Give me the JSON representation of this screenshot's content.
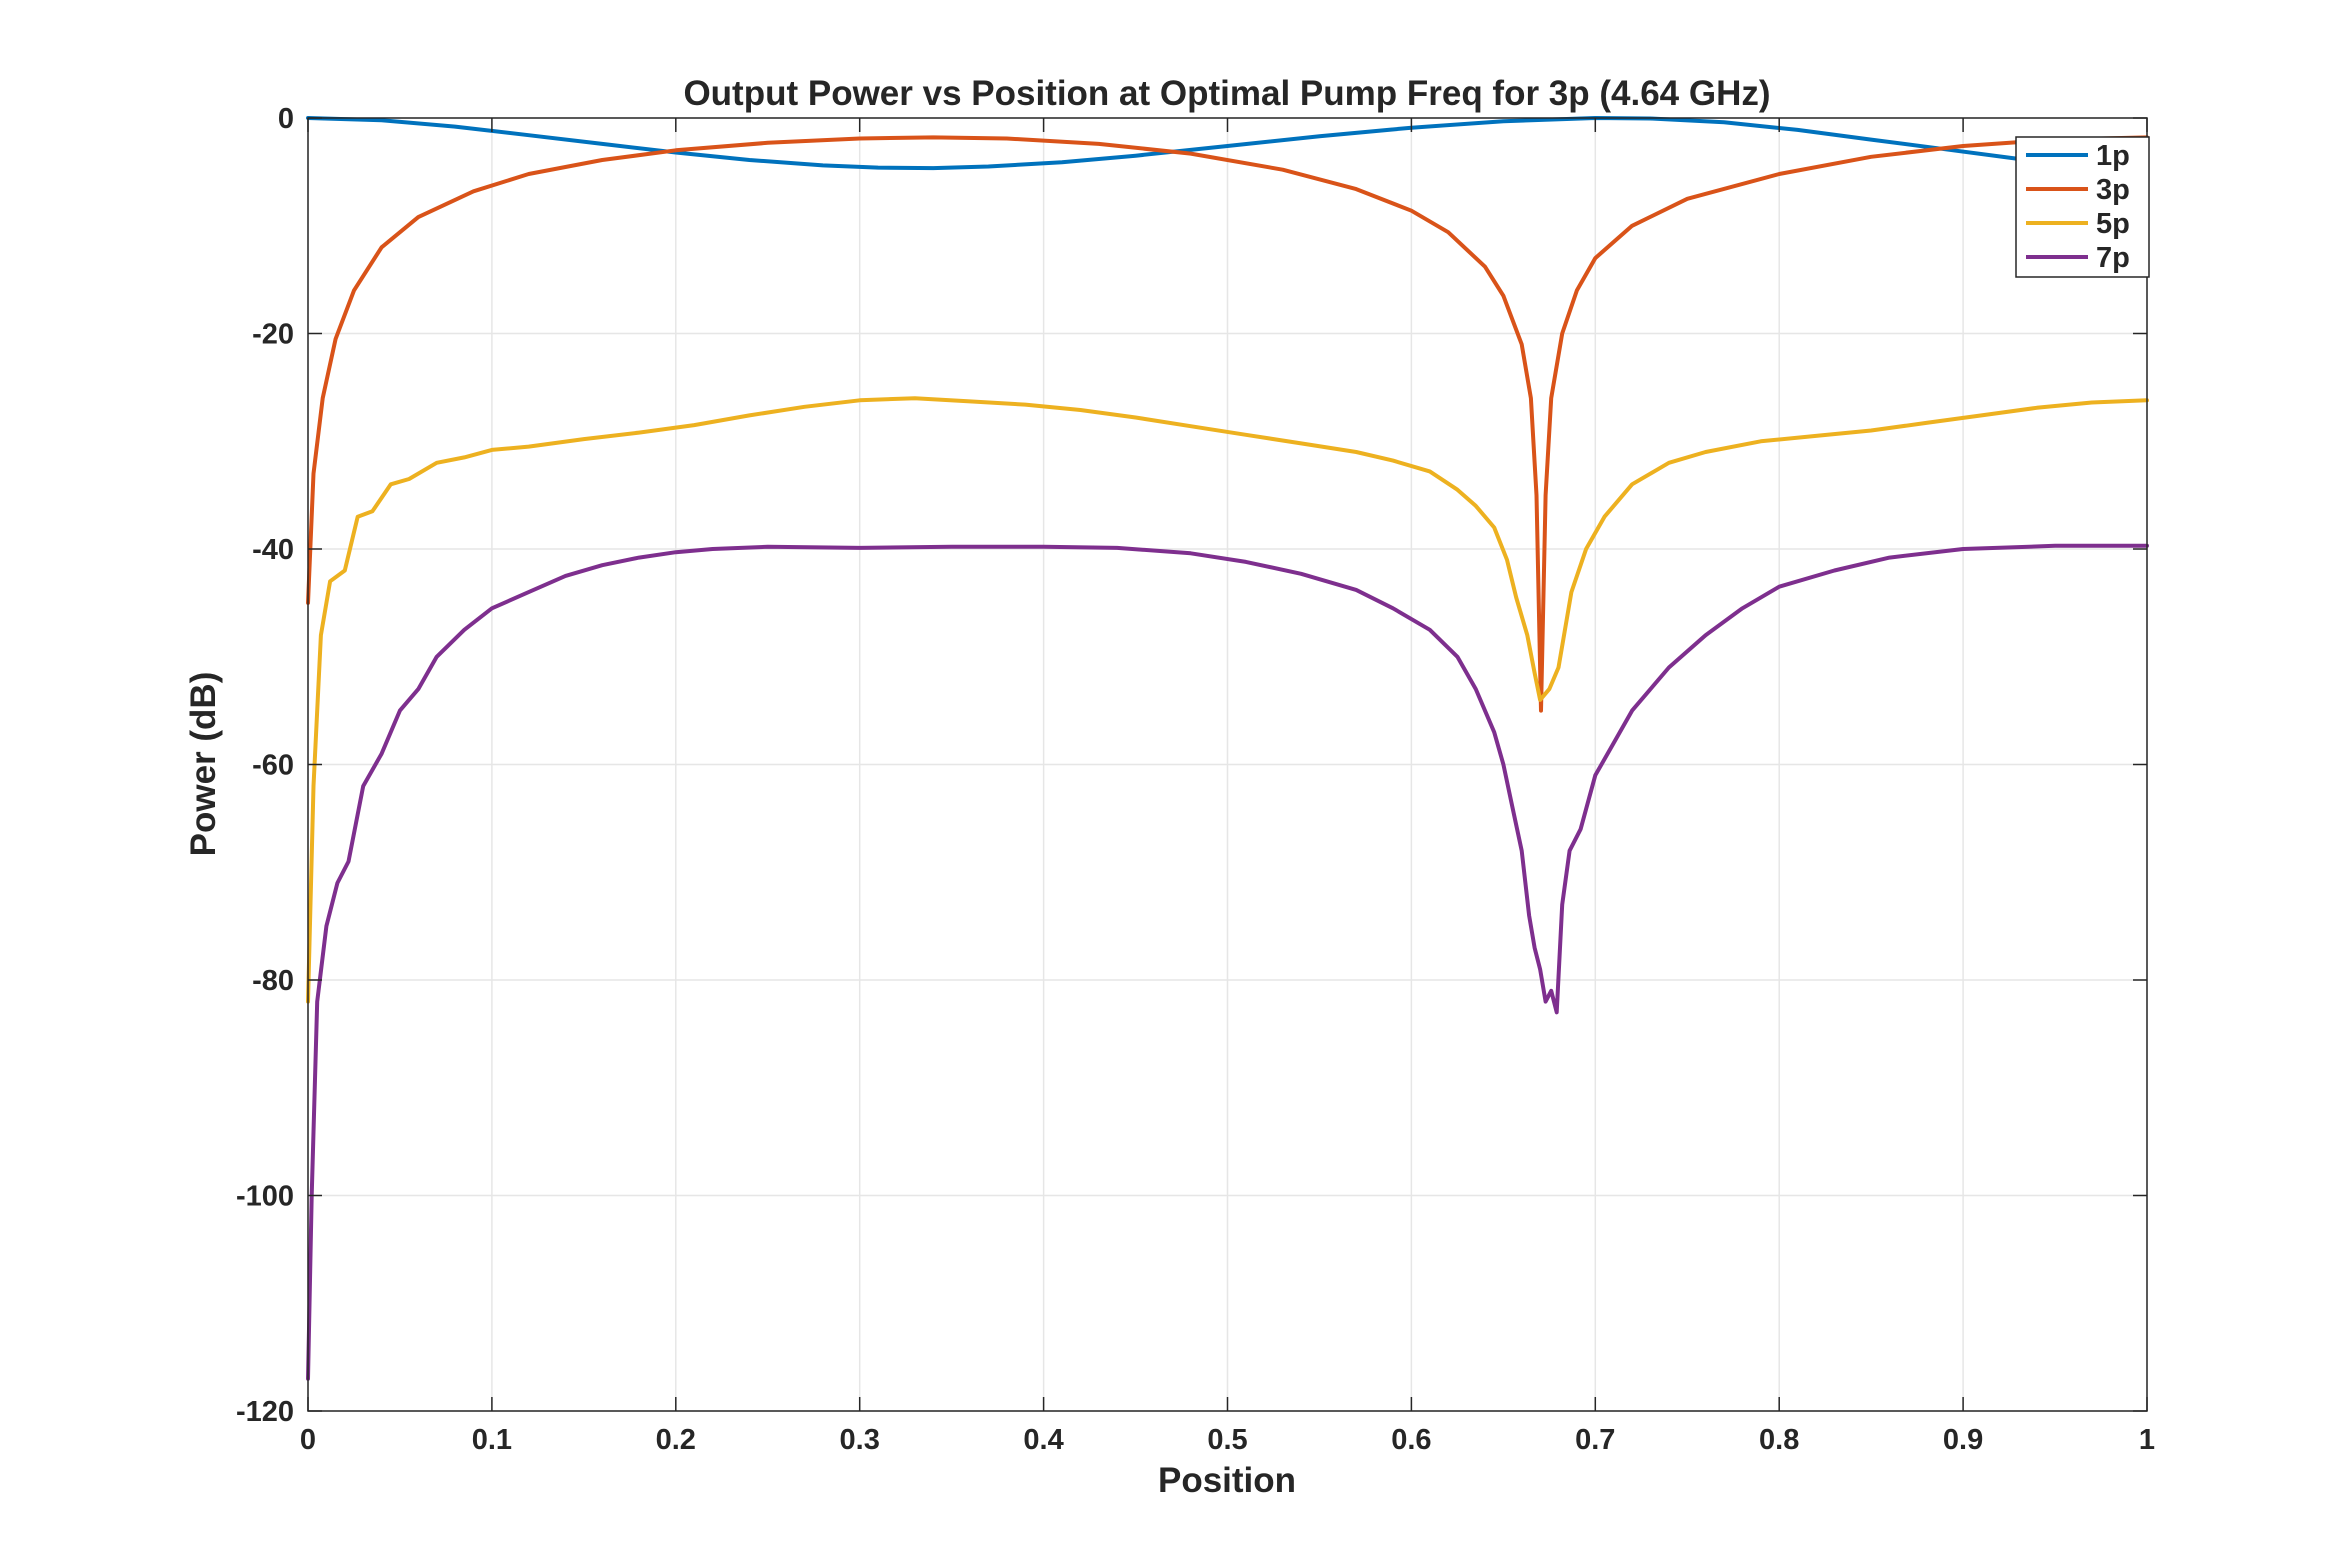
{
  "chart_data": {
    "type": "line",
    "title": "Output Power vs Position at Optimal Pump Freq for 3p (4.64 GHz)",
    "xlabel": "Position",
    "ylabel": "Power (dB)",
    "xlim": [
      0,
      1
    ],
    "ylim": [
      -120,
      0
    ],
    "xticks": [
      0,
      0.1,
      0.2,
      0.3,
      0.4,
      0.5,
      0.6,
      0.7,
      0.8,
      0.9,
      1
    ],
    "xtick_labels": [
      "0",
      "0.1",
      "0.2",
      "0.3",
      "0.4",
      "0.5",
      "0.6",
      "0.7",
      "0.8",
      "0.9",
      "1"
    ],
    "yticks": [
      0,
      -20,
      -40,
      -60,
      -80,
      -100,
      -120
    ],
    "ytick_labels": [
      "0",
      "-20",
      "-40",
      "-60",
      "-80",
      "-100",
      "-120"
    ],
    "grid": true,
    "legend_position": "top-right",
    "series": [
      {
        "name": "1p",
        "color": "#0072BD",
        "points": [
          [
            0,
            0
          ],
          [
            0.04,
            -0.2
          ],
          [
            0.08,
            -0.8
          ],
          [
            0.12,
            -1.6
          ],
          [
            0.16,
            -2.4
          ],
          [
            0.2,
            -3.2
          ],
          [
            0.24,
            -3.9
          ],
          [
            0.28,
            -4.4
          ],
          [
            0.31,
            -4.6
          ],
          [
            0.34,
            -4.65
          ],
          [
            0.37,
            -4.5
          ],
          [
            0.41,
            -4.1
          ],
          [
            0.45,
            -3.5
          ],
          [
            0.5,
            -2.6
          ],
          [
            0.55,
            -1.7
          ],
          [
            0.6,
            -0.9
          ],
          [
            0.65,
            -0.3
          ],
          [
            0.7,
            0
          ],
          [
            0.73,
            -0.05
          ],
          [
            0.77,
            -0.4
          ],
          [
            0.81,
            -1.1
          ],
          [
            0.85,
            -2
          ],
          [
            0.89,
            -2.9
          ],
          [
            0.93,
            -3.8
          ],
          [
            0.97,
            -4.4
          ],
          [
            1,
            -4.7
          ]
        ]
      },
      {
        "name": "3p",
        "color": "#D95319",
        "points": [
          [
            0,
            -45
          ],
          [
            0.003,
            -33
          ],
          [
            0.008,
            -26
          ],
          [
            0.015,
            -20.5
          ],
          [
            0.025,
            -16
          ],
          [
            0.04,
            -12
          ],
          [
            0.06,
            -9.2
          ],
          [
            0.09,
            -6.8
          ],
          [
            0.12,
            -5.2
          ],
          [
            0.16,
            -3.9
          ],
          [
            0.2,
            -3
          ],
          [
            0.25,
            -2.3
          ],
          [
            0.3,
            -1.9
          ],
          [
            0.34,
            -1.8
          ],
          [
            0.38,
            -1.9
          ],
          [
            0.43,
            -2.4
          ],
          [
            0.48,
            -3.3
          ],
          [
            0.53,
            -4.8
          ],
          [
            0.57,
            -6.6
          ],
          [
            0.6,
            -8.6
          ],
          [
            0.62,
            -10.6
          ],
          [
            0.64,
            -13.8
          ],
          [
            0.65,
            -16.5
          ],
          [
            0.66,
            -21
          ],
          [
            0.665,
            -26
          ],
          [
            0.668,
            -35
          ],
          [
            0.6705,
            -55
          ],
          [
            0.673,
            -35
          ],
          [
            0.676,
            -26
          ],
          [
            0.682,
            -20
          ],
          [
            0.69,
            -16
          ],
          [
            0.7,
            -13
          ],
          [
            0.72,
            -10
          ],
          [
            0.75,
            -7.5
          ],
          [
            0.8,
            -5.2
          ],
          [
            0.85,
            -3.6
          ],
          [
            0.9,
            -2.6
          ],
          [
            0.95,
            -2
          ],
          [
            1,
            -1.8
          ]
        ]
      },
      {
        "name": "5p",
        "color": "#EDB120",
        "points": [
          [
            0,
            -82
          ],
          [
            0.003,
            -62
          ],
          [
            0.007,
            -48
          ],
          [
            0.012,
            -43
          ],
          [
            0.02,
            -42
          ],
          [
            0.027,
            -37
          ],
          [
            0.035,
            -36.5
          ],
          [
            0.045,
            -34
          ],
          [
            0.055,
            -33.5
          ],
          [
            0.07,
            -32
          ],
          [
            0.085,
            -31.5
          ],
          [
            0.1,
            -30.8
          ],
          [
            0.12,
            -30.5
          ],
          [
            0.15,
            -29.8
          ],
          [
            0.18,
            -29.2
          ],
          [
            0.21,
            -28.5
          ],
          [
            0.24,
            -27.6
          ],
          [
            0.27,
            -26.8
          ],
          [
            0.3,
            -26.2
          ],
          [
            0.33,
            -26
          ],
          [
            0.36,
            -26.3
          ],
          [
            0.39,
            -26.6
          ],
          [
            0.42,
            -27.1
          ],
          [
            0.45,
            -27.8
          ],
          [
            0.48,
            -28.6
          ],
          [
            0.51,
            -29.4
          ],
          [
            0.54,
            -30.2
          ],
          [
            0.57,
            -31
          ],
          [
            0.59,
            -31.8
          ],
          [
            0.61,
            -32.8
          ],
          [
            0.625,
            -34.5
          ],
          [
            0.635,
            -36
          ],
          [
            0.645,
            -38
          ],
          [
            0.652,
            -41
          ],
          [
            0.657,
            -44.5
          ],
          [
            0.663,
            -48
          ],
          [
            0.667,
            -51.5
          ],
          [
            0.67,
            -54
          ],
          [
            0.675,
            -53
          ],
          [
            0.68,
            -51
          ],
          [
            0.687,
            -44
          ],
          [
            0.695,
            -40
          ],
          [
            0.705,
            -37
          ],
          [
            0.72,
            -34
          ],
          [
            0.74,
            -32
          ],
          [
            0.76,
            -31
          ],
          [
            0.79,
            -30
          ],
          [
            0.82,
            -29.5
          ],
          [
            0.85,
            -29
          ],
          [
            0.88,
            -28.3
          ],
          [
            0.91,
            -27.6
          ],
          [
            0.94,
            -26.9
          ],
          [
            0.97,
            -26.4
          ],
          [
            1,
            -26.2
          ]
        ]
      },
      {
        "name": "7p",
        "color": "#7E2F8E",
        "points": [
          [
            0,
            -117
          ],
          [
            0.002,
            -100
          ],
          [
            0.005,
            -82
          ],
          [
            0.01,
            -75
          ],
          [
            0.016,
            -71
          ],
          [
            0.022,
            -69
          ],
          [
            0.03,
            -62
          ],
          [
            0.04,
            -59
          ],
          [
            0.05,
            -55
          ],
          [
            0.06,
            -53
          ],
          [
            0.07,
            -50
          ],
          [
            0.085,
            -47.5
          ],
          [
            0.1,
            -45.5
          ],
          [
            0.12,
            -44
          ],
          [
            0.14,
            -42.5
          ],
          [
            0.16,
            -41.5
          ],
          [
            0.18,
            -40.8
          ],
          [
            0.2,
            -40.3
          ],
          [
            0.22,
            -40
          ],
          [
            0.25,
            -39.8
          ],
          [
            0.3,
            -39.9
          ],
          [
            0.35,
            -39.8
          ],
          [
            0.4,
            -39.8
          ],
          [
            0.44,
            -39.9
          ],
          [
            0.48,
            -40.4
          ],
          [
            0.51,
            -41.2
          ],
          [
            0.54,
            -42.3
          ],
          [
            0.57,
            -43.8
          ],
          [
            0.59,
            -45.5
          ],
          [
            0.61,
            -47.5
          ],
          [
            0.625,
            -50
          ],
          [
            0.635,
            -53
          ],
          [
            0.645,
            -57
          ],
          [
            0.65,
            -60
          ],
          [
            0.655,
            -64
          ],
          [
            0.66,
            -68
          ],
          [
            0.664,
            -74
          ],
          [
            0.667,
            -77
          ],
          [
            0.67,
            -79
          ],
          [
            0.673,
            -82
          ],
          [
            0.676,
            -81
          ],
          [
            0.679,
            -83
          ],
          [
            0.682,
            -73
          ],
          [
            0.686,
            -68
          ],
          [
            0.692,
            -66
          ],
          [
            0.7,
            -61
          ],
          [
            0.71,
            -58
          ],
          [
            0.72,
            -55
          ],
          [
            0.74,
            -51
          ],
          [
            0.76,
            -48
          ],
          [
            0.78,
            -45.5
          ],
          [
            0.8,
            -43.5
          ],
          [
            0.83,
            -42
          ],
          [
            0.86,
            -40.8
          ],
          [
            0.9,
            -40
          ],
          [
            0.95,
            -39.7
          ],
          [
            1,
            -39.7
          ]
        ]
      }
    ]
  }
}
